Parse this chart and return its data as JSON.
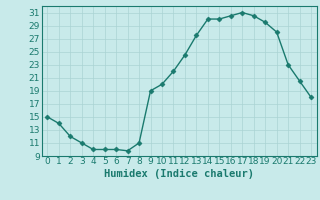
{
  "x": [
    0,
    1,
    2,
    3,
    4,
    5,
    6,
    7,
    8,
    9,
    10,
    11,
    12,
    13,
    14,
    15,
    16,
    17,
    18,
    19,
    20,
    21,
    22,
    23
  ],
  "y": [
    15,
    14,
    12,
    11,
    10,
    10,
    10,
    9.8,
    11,
    19,
    20,
    22,
    24.5,
    27.5,
    30,
    30,
    30.5,
    31,
    30.5,
    29.5,
    28,
    23,
    20.5,
    18
  ],
  "line_color": "#1a7a6e",
  "marker": "D",
  "marker_size": 2.5,
  "bg_color": "#c8eaea",
  "grid_color": "#aad4d4",
  "xlabel": "Humidex (Indice chaleur)",
  "xlim": [
    -0.5,
    23.5
  ],
  "ylim": [
    9,
    32
  ],
  "yticks": [
    9,
    11,
    13,
    15,
    17,
    19,
    21,
    23,
    25,
    27,
    29,
    31
  ],
  "xticks": [
    0,
    1,
    2,
    3,
    4,
    5,
    6,
    7,
    8,
    9,
    10,
    11,
    12,
    13,
    14,
    15,
    16,
    17,
    18,
    19,
    20,
    21,
    22,
    23
  ],
  "xlabel_fontsize": 7.5,
  "tick_fontsize": 6.5,
  "line_width": 1.0
}
